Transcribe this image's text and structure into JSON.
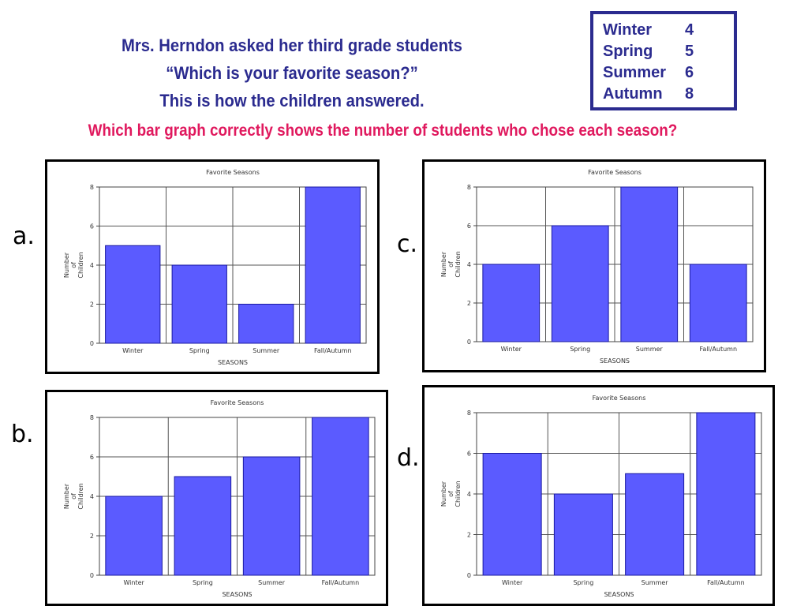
{
  "header": {
    "line1": "Mrs. Herndon asked her third grade students",
    "line2": "“Which is your favorite season?”",
    "line3": "This is how the children answered."
  },
  "question": "Which bar graph correctly shows the number of students who chose each season?",
  "table": [
    {
      "season": "Winter",
      "count": "4"
    },
    {
      "season": "Spring",
      "count": "5"
    },
    {
      "season": "Summer",
      "count": "6"
    },
    {
      "season": "Autumn",
      "count": "8"
    }
  ],
  "options": {
    "a": "a.",
    "b": "b.",
    "c": "c.",
    "d": "d."
  },
  "bar_color": "#5b5bff",
  "chart_data": [
    {
      "id": "a",
      "type": "bar",
      "title": "Favorite Seasons",
      "xlabel": "SEASONS",
      "ylabel": "Number of Children",
      "categories": [
        "Winter",
        "Spring",
        "Summer",
        "Fall/Autumn"
      ],
      "values": [
        5,
        4,
        2,
        8
      ],
      "ylim": [
        0,
        8
      ],
      "yticks": [
        0,
        2,
        4,
        6,
        8
      ]
    },
    {
      "id": "b",
      "type": "bar",
      "title": "Favorite Seasons",
      "xlabel": "SEASONS",
      "ylabel": "Number of Children",
      "categories": [
        "Winter",
        "Spring",
        "Summer",
        "Fall/Autumn"
      ],
      "values": [
        4,
        5,
        6,
        8
      ],
      "ylim": [
        0,
        8
      ],
      "yticks": [
        0,
        2,
        4,
        6,
        8
      ]
    },
    {
      "id": "c",
      "type": "bar",
      "title": "Favorite Seasons",
      "xlabel": "SEASONS",
      "ylabel": "Number of Children",
      "categories": [
        "Winter",
        "Spring",
        "Summer",
        "Fall/Autumn"
      ],
      "values": [
        4,
        6,
        8,
        4
      ],
      "ylim": [
        0,
        8
      ],
      "yticks": [
        0,
        2,
        4,
        6,
        8
      ]
    },
    {
      "id": "d",
      "type": "bar",
      "title": "Favorite Seasons",
      "xlabel": "SEASONS",
      "ylabel": "Number of Children",
      "categories": [
        "Winter",
        "Spring",
        "Summer",
        "Fall/Autumn"
      ],
      "values": [
        6,
        4,
        5,
        8
      ],
      "ylim": [
        0,
        8
      ],
      "yticks": [
        0,
        2,
        4,
        6,
        8
      ]
    }
  ]
}
